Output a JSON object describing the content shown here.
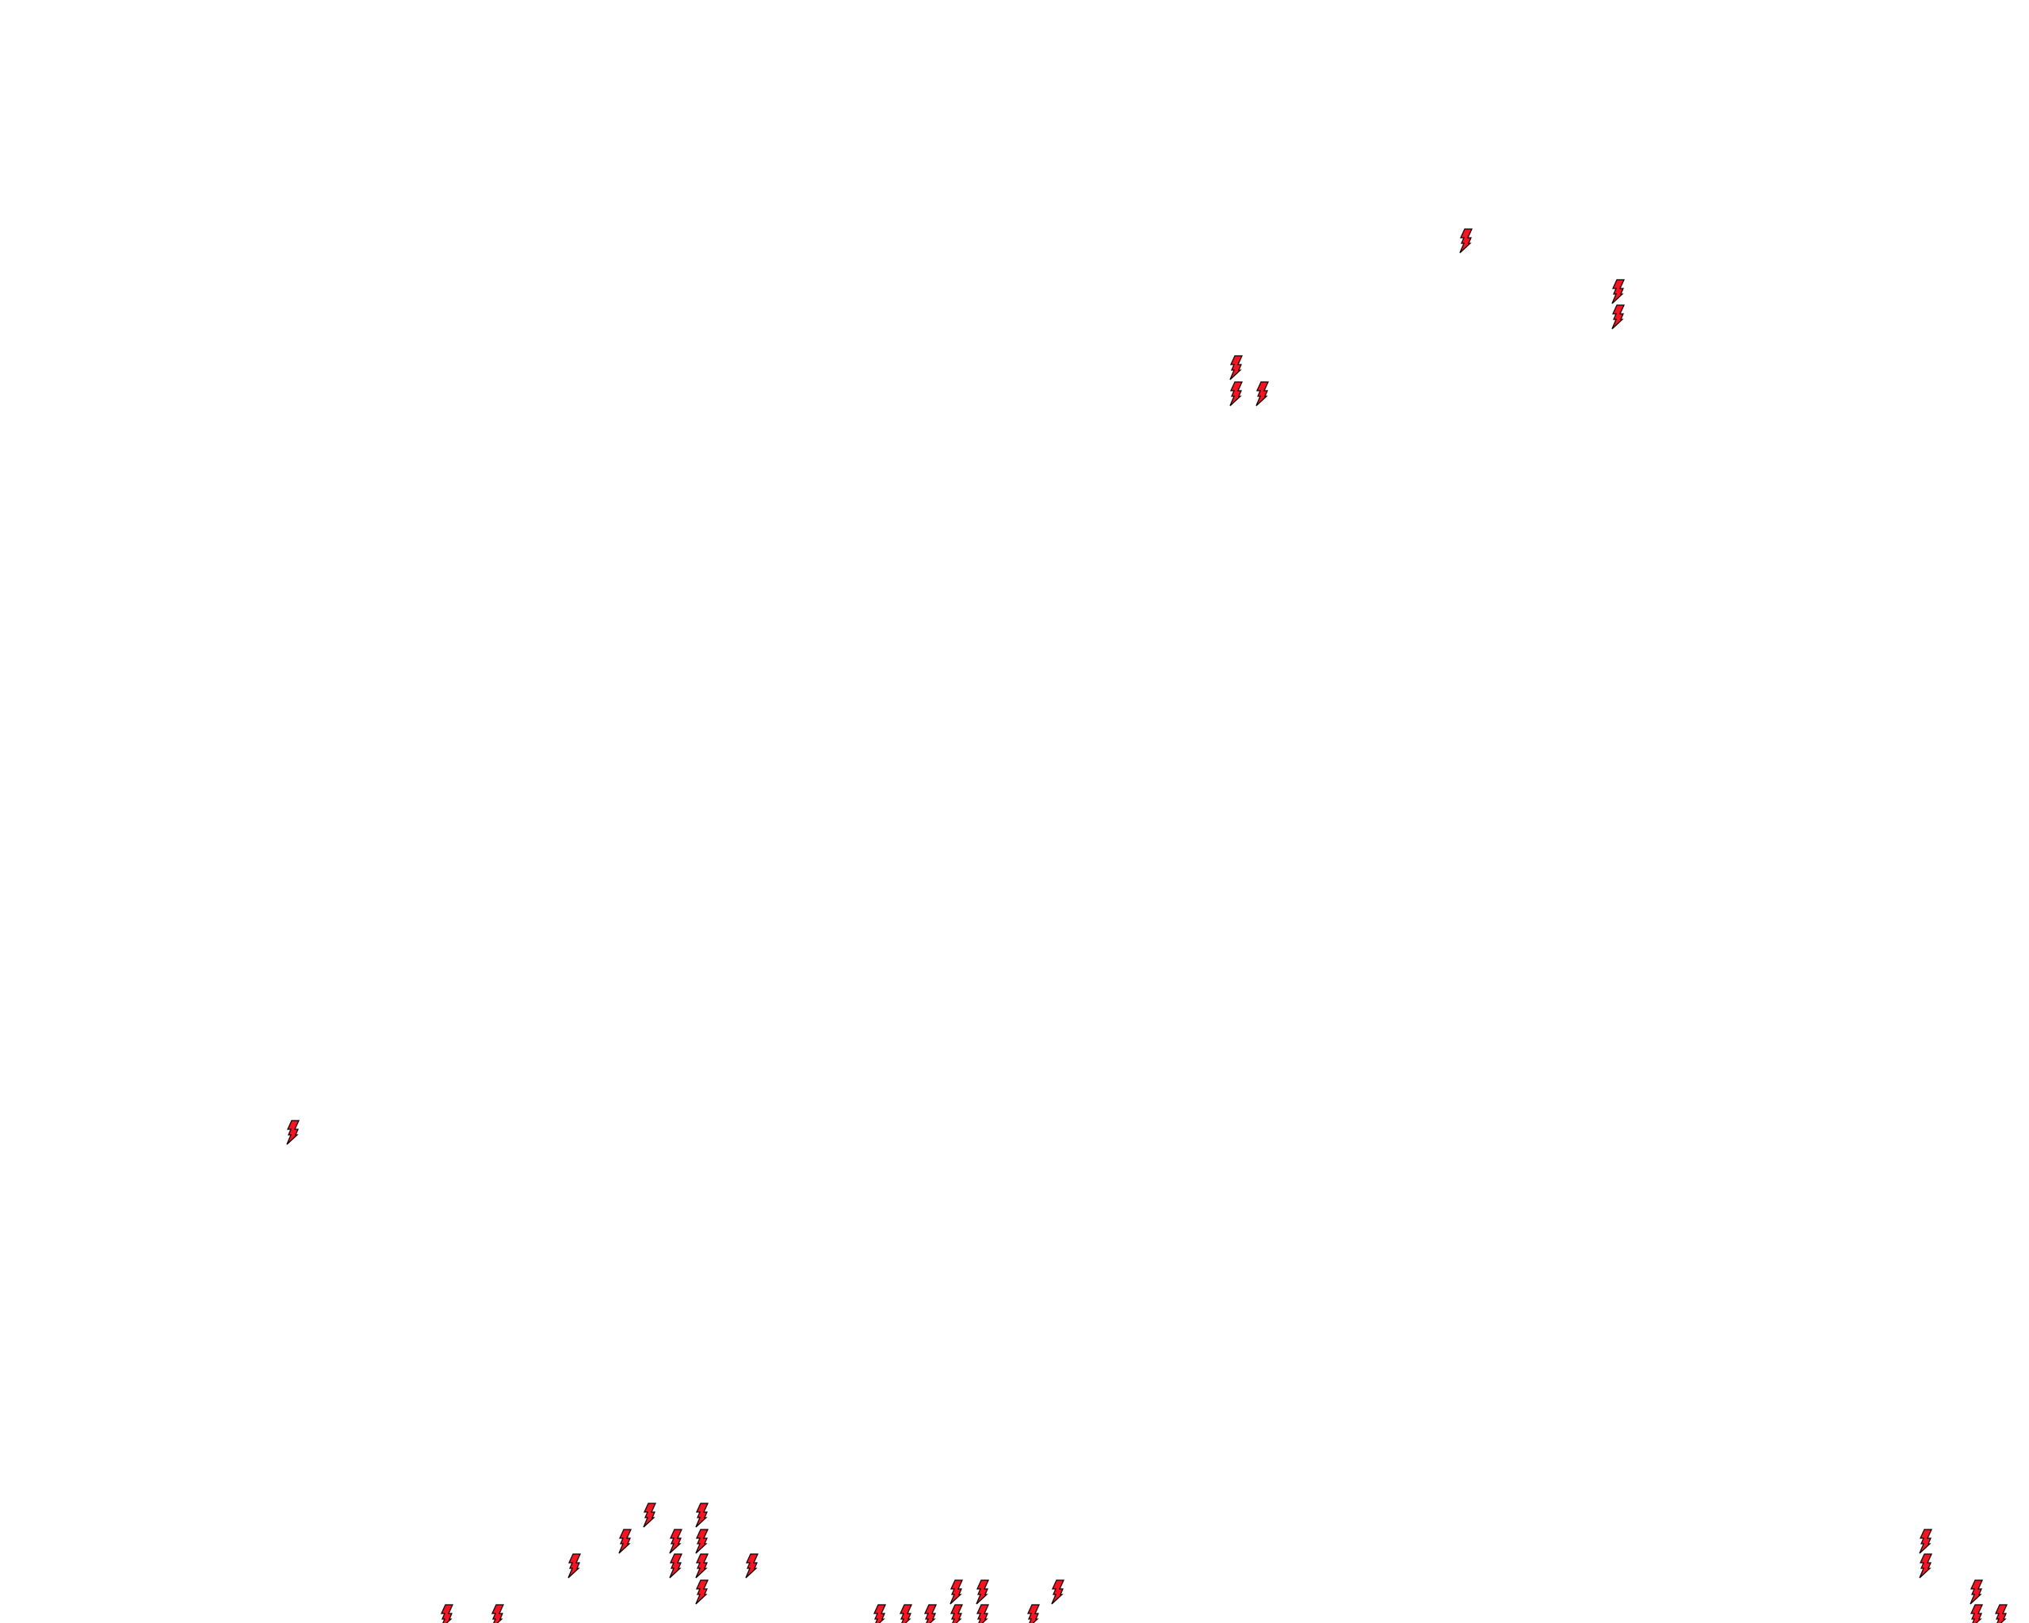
{
  "map": {
    "background_color": "#ffffff",
    "marker_icon": "lightning-bolt-icon",
    "marker_fill": "#ff1020",
    "marker_stroke": "#000000",
    "marker_count": 35
  }
}
